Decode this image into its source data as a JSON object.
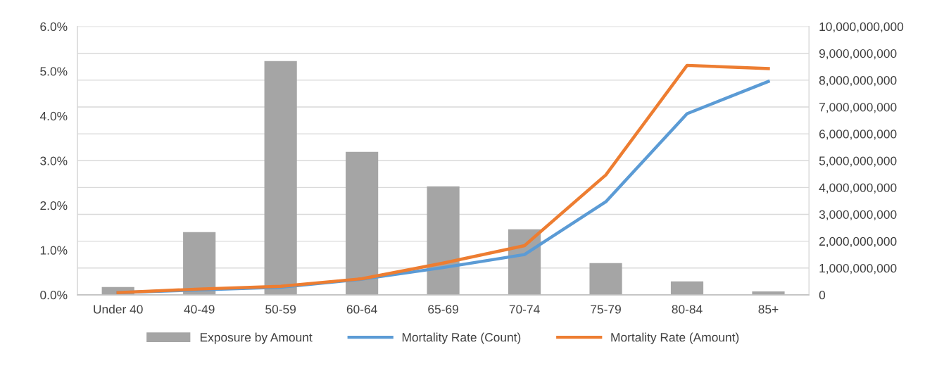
{
  "chart_data": {
    "type": "bar",
    "categories": [
      "Under 40",
      "40-49",
      "50-59",
      "60-64",
      "65-69",
      "70-74",
      "75-79",
      "80-84",
      "85+"
    ],
    "series": [
      {
        "name": "Exposure by Amount",
        "axis": "y2",
        "color": "#a5a5a5",
        "values": [
          290000000,
          2340000000,
          8710000000,
          5330000000,
          4040000000,
          2440000000,
          1180000000,
          500000000,
          130000000
        ]
      },
      {
        "name": "Mortality Rate (Count)",
        "type": "line",
        "axis": "y",
        "color": "#5b9bd5",
        "values": [
          0.05,
          0.11,
          0.17,
          0.35,
          0.61,
          0.9,
          2.08,
          4.05,
          4.77
        ]
      },
      {
        "name": "Mortality Rate (Amount)",
        "type": "line",
        "axis": "y",
        "color": "#ed7d31",
        "values": [
          0.05,
          0.13,
          0.19,
          0.36,
          0.71,
          1.1,
          2.68,
          5.13,
          5.06
        ]
      }
    ],
    "ylim": [
      0,
      6
    ],
    "yticks": [
      {
        "value": 0,
        "label": "0.0%"
      },
      {
        "value": 1,
        "label": "1.0%"
      },
      {
        "value": 2,
        "label": "2.0%"
      },
      {
        "value": 3,
        "label": "3.0%"
      },
      {
        "value": 4,
        "label": "4.0%"
      },
      {
        "value": 5,
        "label": "5.0%"
      },
      {
        "value": 6,
        "label": "6.0%"
      }
    ],
    "y2lim": [
      0,
      10000000000
    ],
    "y2ticks": [
      {
        "value": 0,
        "label": "0"
      },
      {
        "value": 1000000000,
        "label": "1,000,000,000"
      },
      {
        "value": 2000000000,
        "label": "2,000,000,000"
      },
      {
        "value": 3000000000,
        "label": "3,000,000,000"
      },
      {
        "value": 4000000000,
        "label": "4,000,000,000"
      },
      {
        "value": 5000000000,
        "label": "5,000,000,000"
      },
      {
        "value": 6000000000,
        "label": "6,000,000,000"
      },
      {
        "value": 7000000000,
        "label": "7,000,000,000"
      },
      {
        "value": 8000000000,
        "label": "8,000,000,000"
      },
      {
        "value": 9000000000,
        "label": "9,000,000,000"
      },
      {
        "value": 10000000000,
        "label": "10,000,000,000"
      }
    ],
    "grid": "y",
    "legend": "bottom",
    "marker": "none",
    "line_style": "solid"
  }
}
